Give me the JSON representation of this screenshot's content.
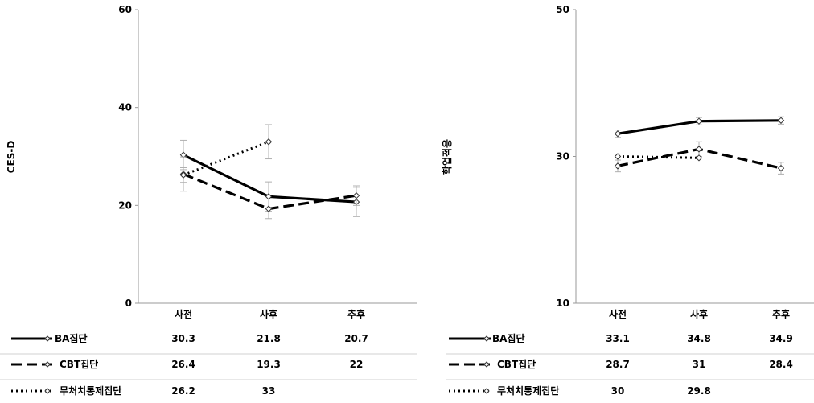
{
  "chart_data": [
    {
      "type": "line",
      "ylabel": "CES-D",
      "ylim": [
        0,
        60
      ],
      "yticks": [
        0,
        20,
        40,
        60
      ],
      "categories": [
        "사전",
        "사후",
        "추후"
      ],
      "series": [
        {
          "name": "BA집단",
          "style": "solid",
          "values": [
            30.3,
            21.8,
            20.7
          ],
          "errors": [
            3.0,
            3.0,
            3.0
          ],
          "labels": [
            "30.3",
            "21.8",
            "20.7"
          ]
        },
        {
          "name": "CBT집단",
          "style": "dashed",
          "values": [
            26.4,
            19.3,
            22
          ],
          "errors": [
            3.5,
            2.0,
            2.0
          ],
          "labels": [
            "26.4",
            "19.3",
            "22"
          ]
        },
        {
          "name": "무처치통제집단",
          "style": "dotted",
          "values": [
            26.2,
            33,
            null
          ],
          "errors": [
            1.5,
            3.5,
            null
          ],
          "labels": [
            "26.2",
            "33",
            ""
          ]
        }
      ]
    },
    {
      "type": "line",
      "ylabel": "학업적응",
      "ylim": [
        10,
        50
      ],
      "yticks": [
        10,
        30,
        50
      ],
      "categories": [
        "사전",
        "사후",
        "추후"
      ],
      "series": [
        {
          "name": "BA집단",
          "style": "solid",
          "values": [
            33.1,
            34.8,
            34.9
          ],
          "errors": [
            0.5,
            0.5,
            0.5
          ],
          "labels": [
            "33.1",
            "34.8",
            "34.9"
          ]
        },
        {
          "name": "CBT집단",
          "style": "dashed",
          "values": [
            28.7,
            31,
            28.4
          ],
          "errors": [
            0.8,
            1.0,
            0.8
          ],
          "labels": [
            "28.7",
            "31",
            "28.4"
          ]
        },
        {
          "name": "무처치통제집단",
          "style": "dotted",
          "values": [
            30,
            29.8,
            null
          ],
          "errors": [
            null,
            null,
            null
          ],
          "labels": [
            "30",
            "29.8",
            ""
          ]
        }
      ]
    }
  ]
}
